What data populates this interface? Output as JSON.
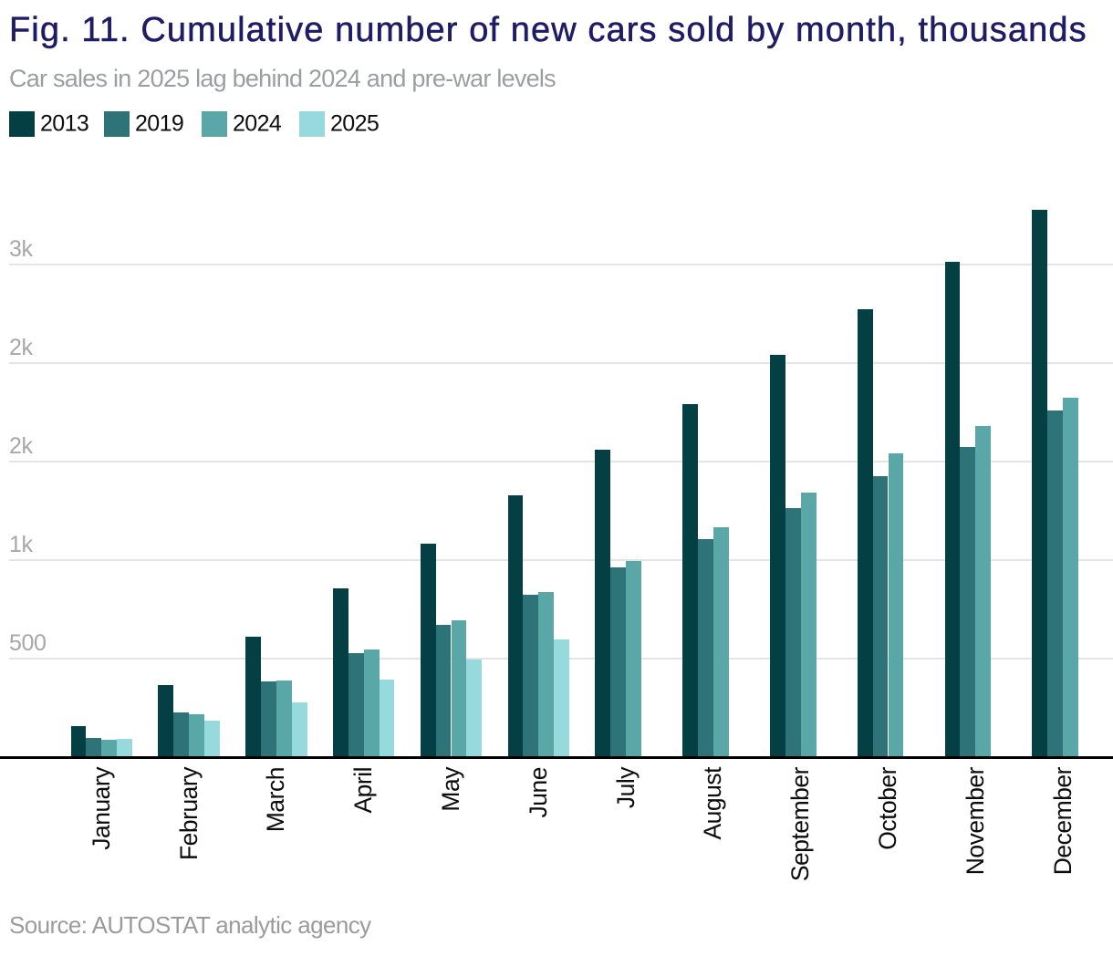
{
  "title": "Fig. 11. Cumulative number of new cars sold by month, thousands",
  "subtitle": "Car sales in 2025 lag behind 2024 and pre-war levels",
  "source": "Source: AUTOSTAT analytic agency",
  "colors": {
    "background": "#ffffff",
    "title": "#1e1c64",
    "subtitle": "#9b9ea0",
    "tick_label": "#a7a7a7",
    "gridline": "#e4e4e4",
    "axis": "#000000",
    "month_label": "#0d0d0d",
    "legend_label": "#0d0d0d",
    "source_text": "#9b9b9b"
  },
  "chart_data": {
    "type": "bar",
    "title": "Fig. 11. Cumulative number of new cars sold by month, thousands",
    "subtitle": "Car sales in 2025 lag behind 2024 and pre-war levels",
    "unit": "thousands of cars, cumulative by month",
    "categories": [
      "January",
      "February",
      "March",
      "April",
      "May",
      "June",
      "July",
      "August",
      "September",
      "October",
      "November",
      "December"
    ],
    "series": [
      {
        "name": "2013",
        "color": "#043f43",
        "values": [
          157,
          366,
          611,
          856,
          1085,
          1331,
          1562,
          1792,
          2043,
          2274,
          2512,
          2779
        ]
      },
      {
        "name": "2019",
        "color": "#2d7377",
        "values": [
          97,
          225,
          383,
          530,
          670,
          826,
          963,
          1106,
          1262,
          1424,
          1575,
          1757
        ]
      },
      {
        "name": "2024",
        "color": "#5aa7a8",
        "values": [
          87,
          218,
          390,
          548,
          695,
          838,
          994,
          1165,
          1341,
          1541,
          1679,
          1822
        ]
      },
      {
        "name": "2025",
        "color": "#97dade",
        "values": [
          93,
          185,
          276,
          392,
          494,
          597,
          null,
          null,
          null,
          null,
          null,
          null
        ]
      }
    ],
    "y_ticks": [
      {
        "value": 500,
        "label": "500"
      },
      {
        "value": 1000,
        "label": "1k"
      },
      {
        "value": 1500,
        "label": "2k"
      },
      {
        "value": 2000,
        "label": "2k"
      },
      {
        "value": 2500,
        "label": "3k"
      }
    ],
    "ylim": [
      0,
      2780
    ],
    "grid": "horizontal",
    "legend_position": "top-left",
    "x_label_rotation": -90,
    "source": "Source: AUTOSTAT analytic agency"
  }
}
